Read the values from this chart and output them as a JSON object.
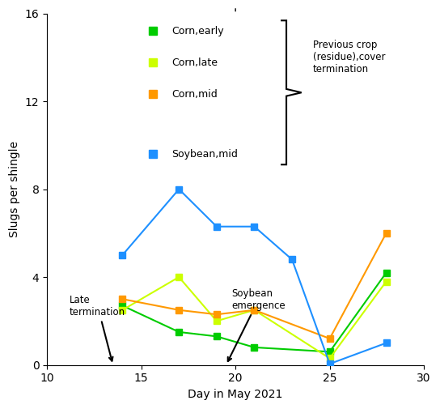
{
  "series": {
    "corn_early": {
      "x": [
        14,
        17,
        19,
        21,
        25,
        28
      ],
      "y": [
        2.7,
        1.5,
        1.3,
        0.8,
        0.6,
        4.2
      ],
      "color": "#00cc00",
      "label": "Corn,early"
    },
    "corn_late": {
      "x": [
        14,
        17,
        19,
        21,
        25,
        28
      ],
      "y": [
        2.5,
        4.0,
        2.0,
        2.5,
        0.3,
        3.8
      ],
      "color": "#ccff00",
      "label": "Corn,late"
    },
    "corn_mid": {
      "x": [
        14,
        17,
        19,
        21,
        25,
        28
      ],
      "y": [
        3.0,
        2.5,
        2.3,
        2.5,
        1.2,
        6.0
      ],
      "color": "#ff9900",
      "label": "Corn,mid"
    },
    "soybean_mid": {
      "x": [
        14,
        17,
        19,
        21,
        23,
        25,
        28
      ],
      "y": [
        5.0,
        8.0,
        6.3,
        6.3,
        4.8,
        0.05,
        1.0
      ],
      "color": "#1e90ff",
      "label": "Soybean,mid"
    }
  },
  "xlim": [
    10,
    30
  ],
  "ylim": [
    0,
    16
  ],
  "xticks": [
    10,
    15,
    20,
    25,
    30
  ],
  "yticks": [
    0,
    4,
    8,
    12,
    16
  ],
  "xlabel": "Day in May 2021",
  "ylabel": "Slugs per shingle",
  "legend_items": [
    "Corn,early",
    "Corn,late",
    "Corn,mid",
    "Soybean,mid"
  ],
  "legend_colors": [
    "#00cc00",
    "#ccff00",
    "#ff9900",
    "#1e90ff"
  ],
  "marker_size": 6,
  "linewidth": 1.5,
  "background_color": "#ffffff",
  "fig_width": 5.44,
  "fig_height": 5.05,
  "dpi": 100
}
